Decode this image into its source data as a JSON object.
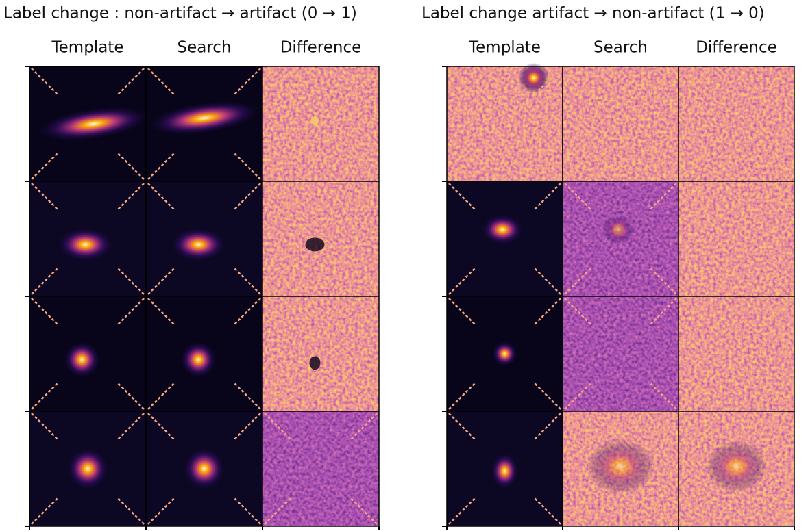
{
  "left_panel": {
    "title": "Label change : non-artifact → artifact (0 → 1)",
    "columns": [
      "Template",
      "Search",
      "Difference"
    ]
  },
  "right_panel": {
    "title": "Label change  artifact → non-artifact  (1 → 0)",
    "columns": [
      "Template",
      "Search",
      "Difference"
    ]
  }
}
